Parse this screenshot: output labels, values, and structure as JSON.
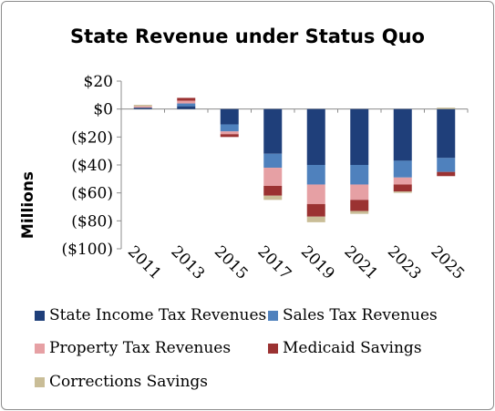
{
  "chart_data": {
    "type": "bar",
    "stacked": true,
    "title": "State Revenue under Status Quo",
    "ylabel": "Millions",
    "xlabel": "",
    "ylim": [
      -100,
      20
    ],
    "yticks": [
      20,
      0,
      -20,
      -40,
      -60,
      -80,
      -100
    ],
    "ytick_labels": [
      "$20",
      "$0",
      "($20)",
      "($40)",
      "($60)",
      "($80)",
      "($100)"
    ],
    "categories": [
      "2011",
      "2013",
      "2015",
      "2017",
      "2019",
      "2021",
      "2023",
      "2025"
    ],
    "grid": false,
    "legend_position": "bottom",
    "series": [
      {
        "name": "State Income Tax Revenues",
        "color": "#1f3f7a",
        "values": [
          1,
          2,
          -11,
          -32,
          -40,
          -40,
          -37,
          -35
        ]
      },
      {
        "name": "Sales Tax Revenues",
        "color": "#4f81bd",
        "values": [
          0,
          2,
          -5,
          -10,
          -14,
          -14,
          -12,
          -10
        ]
      },
      {
        "name": "Property Tax Revenues",
        "color": "#e6a0a4",
        "values": [
          1,
          2,
          -2,
          -13,
          -14,
          -11,
          -5,
          0
        ]
      },
      {
        "name": "Medicaid Savings",
        "color": "#9b3232",
        "values": [
          0,
          2,
          -2,
          -7,
          -9,
          -8,
          -5,
          -3
        ]
      },
      {
        "name": "Corrections Savings",
        "color": "#c9bd97",
        "values": [
          1,
          0,
          0,
          -3,
          -4,
          -2,
          -1,
          1
        ]
      }
    ]
  }
}
